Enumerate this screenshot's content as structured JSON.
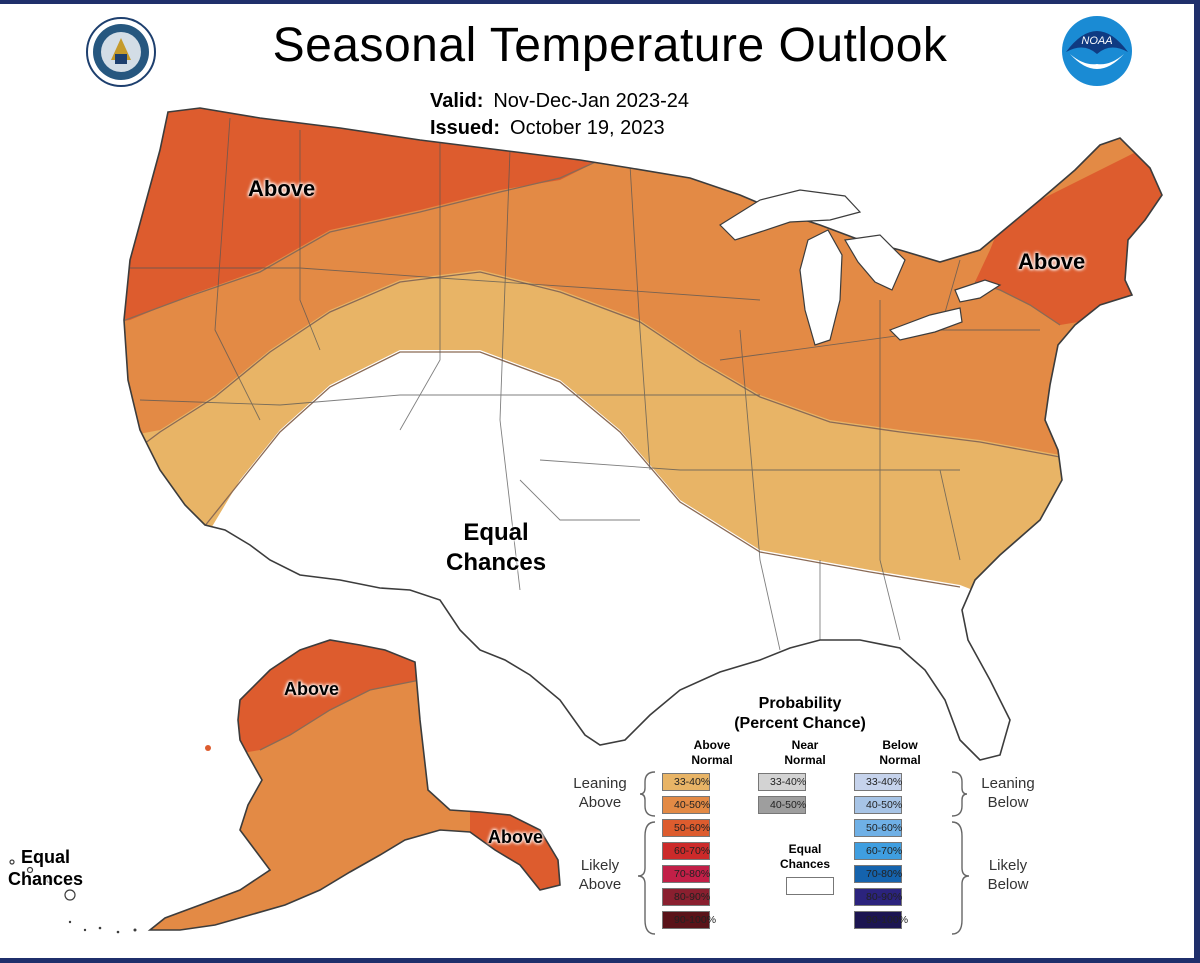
{
  "header": {
    "title": "Seasonal Temperature Outlook",
    "valid_label": "Valid:",
    "valid_value": "Nov-Dec-Jan 2023-24",
    "issued_label": "Issued:",
    "issued_value": "October 19, 2023"
  },
  "logos": {
    "left": "commerce-seal-icon",
    "right": "noaa-logo-icon",
    "noaa_text": "NOAA"
  },
  "map_labels": {
    "nw_above": "Above",
    "ne_above": "Above",
    "equal_chances_line1": "Equal",
    "equal_chances_line2": "Chances",
    "ak_above_north": "Above",
    "ak_above_se": "Above",
    "hi_equal_line1": "Equal",
    "hi_equal_line2": "Chances"
  },
  "legend": {
    "title_line1": "Probability",
    "title_line2": "(Percent Chance)",
    "above_head_1": "Above",
    "above_head_2": "Normal",
    "near_head_1": "Near",
    "near_head_2": "Normal",
    "below_head_1": "Below",
    "below_head_2": "Normal",
    "above": [
      {
        "label": "33-40%",
        "color": "#e8b466"
      },
      {
        "label": "40-50%",
        "color": "#e38a45"
      },
      {
        "label": "50-60%",
        "color": "#dd5c2e"
      },
      {
        "label": "60-70%",
        "color": "#cc2a2a"
      },
      {
        "label": "70-80%",
        "color": "#c21f47"
      },
      {
        "label": "80-90%",
        "color": "#8a1f2f"
      },
      {
        "label": "90-100%",
        "color": "#5a1319"
      }
    ],
    "near": [
      {
        "label": "33-40%",
        "color": "#d3d3d3"
      },
      {
        "label": "40-50%",
        "color": "#9e9e9e"
      }
    ],
    "equal_chances_1": "Equal",
    "equal_chances_2": "Chances",
    "below": [
      {
        "label": "33-40%",
        "color": "#c6d3ec"
      },
      {
        "label": "40-50%",
        "color": "#a7c4e6"
      },
      {
        "label": "50-60%",
        "color": "#6fb0e6"
      },
      {
        "label": "60-70%",
        "color": "#3f9ee0"
      },
      {
        "label": "70-80%",
        "color": "#1563ad"
      },
      {
        "label": "80-90%",
        "color": "#2b237d"
      },
      {
        "label": "90-100%",
        "color": "#1c1551"
      }
    ],
    "leaning_above_1": "Leaning",
    "leaning_above_2": "Above",
    "likely_above_1": "Likely",
    "likely_above_2": "Above",
    "leaning_below_1": "Leaning",
    "leaning_below_2": "Below",
    "likely_below_1": "Likely",
    "likely_below_2": "Below"
  },
  "colors": {
    "band_50_60": "#dd5c2e",
    "band_40_50": "#e38a45",
    "band_33_40": "#e8b466",
    "equal": "#ffffff",
    "border": "#3c3c3c"
  }
}
